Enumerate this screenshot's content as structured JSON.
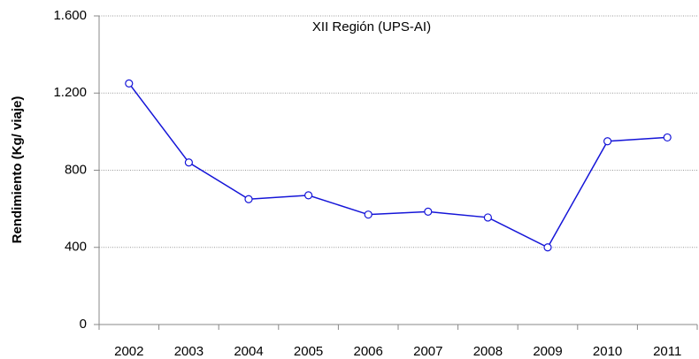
{
  "chart_data": {
    "type": "line",
    "title": "XII Región (UPS-AI)",
    "y_label": "Rendimiento (Kg/ viaje)",
    "categories": [
      "2002",
      "2003",
      "2004",
      "2005",
      "2006",
      "2007",
      "2008",
      "2009",
      "2010",
      "2011"
    ],
    "values": [
      1250,
      840,
      650,
      670,
      570,
      585,
      555,
      400,
      950,
      970
    ],
    "color": "#1515d8",
    "ylim": [
      0,
      1600
    ],
    "yticks": [
      0,
      400,
      800,
      {
        "value": 1200,
        "label": "1.200"
      },
      {
        "value": 1600,
        "label": "1.600"
      }
    ],
    "grid": true
  }
}
